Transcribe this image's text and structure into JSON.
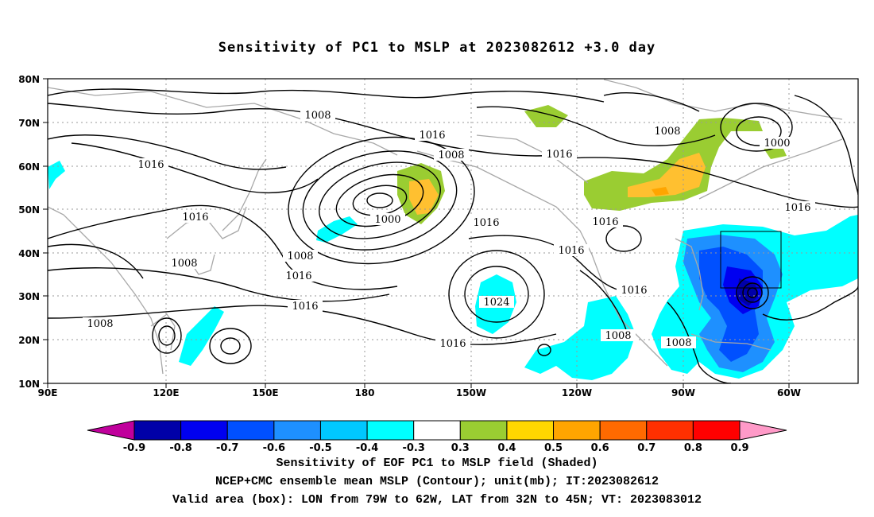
{
  "title": "Sensitivity of PC1 to MSLP at 2023082612 +3.0 day",
  "map": {
    "lat_labels": [
      "80N",
      "70N",
      "60N",
      "50N",
      "40N",
      "30N",
      "20N",
      "10N"
    ],
    "lon_labels": [
      "90E",
      "120E",
      "150E",
      "180",
      "150W",
      "120W",
      "90W",
      "60W"
    ],
    "contour_labels": [
      "1008",
      "1016",
      "1008",
      "1016",
      "1008",
      "1016",
      "1000",
      "1016",
      "1000",
      "1016",
      "1016",
      "1008",
      "1016",
      "1008",
      "1016",
      "1024",
      "1016",
      "1016",
      "1016",
      "1008",
      "1008",
      "1016",
      "1008"
    ],
    "valid_box": {
      "lon_from": "79W",
      "lon_to": "62W",
      "lat_from": "32N",
      "lat_to": "45N"
    }
  },
  "colorbar": {
    "labels": [
      "-0.9",
      "-0.8",
      "-0.7",
      "-0.6",
      "-0.5",
      "-0.4",
      "-0.3",
      "0.3",
      "0.4",
      "0.5",
      "0.6",
      "0.7",
      "0.8",
      "0.9"
    ],
    "colors": [
      "#c0009c",
      "#0000a8",
      "#0000f0",
      "#0050ff",
      "#1e90ff",
      "#00c8ff",
      "#00ffff",
      "#ffffff",
      "#9acd32",
      "#ffd700",
      "#ffa500",
      "#ff6a00",
      "#ff3000",
      "#ff0000",
      "#ff9ac8"
    ]
  },
  "captions": {
    "line1": "Sensitivity of EOF PC1 to MSLP field (Shaded)",
    "line2": "NCEP+CMC ensemble mean MSLP (Contour); unit(mb); IT:2023082612",
    "line3": "Valid area (box): LON from 79W to 62W, LAT from 32N to 45N; VT: 2023083012"
  }
}
